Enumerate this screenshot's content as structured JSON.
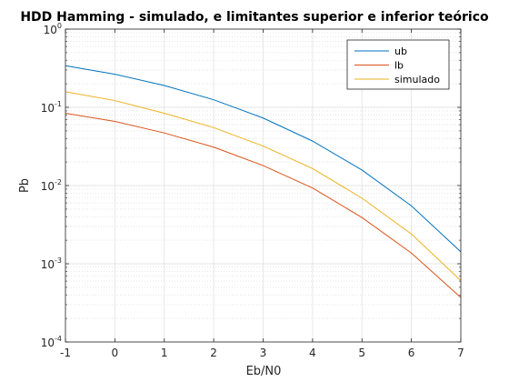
{
  "chart_data": {
    "type": "line",
    "title": "HDD Hamming - simulado, e limitantes superior e inferior teórico",
    "xlabel": "Eb/N0",
    "ylabel": "Pb",
    "xlim": [
      -1,
      7
    ],
    "ylim": [
      0.0001,
      1
    ],
    "yscale": "log",
    "x_ticks": [
      -1,
      0,
      1,
      2,
      3,
      4,
      5,
      6,
      7
    ],
    "y_ticks": [
      {
        "base": "10",
        "exp": "0",
        "value": 1
      },
      {
        "base": "10",
        "exp": "-1",
        "value": 0.1
      },
      {
        "base": "10",
        "exp": "-2",
        "value": 0.01
      },
      {
        "base": "10",
        "exp": "-3",
        "value": 0.001
      },
      {
        "base": "10",
        "exp": "-4",
        "value": 0.0001
      }
    ],
    "grid": true,
    "minor_grid": true,
    "legend_position": "top-right",
    "x": [
      -1,
      0,
      1,
      2,
      3,
      4,
      5,
      6,
      7
    ],
    "series": [
      {
        "name": "ub",
        "color": "#0072BD",
        "values": [
          0.34,
          0.265,
          0.19,
          0.125,
          0.073,
          0.037,
          0.0158,
          0.0055,
          0.00142
        ]
      },
      {
        "name": "lb",
        "color": "#D95319",
        "values": [
          0.084,
          0.066,
          0.047,
          0.031,
          0.018,
          0.0093,
          0.0039,
          0.00137,
          0.00037
        ]
      },
      {
        "name": "simulado",
        "color": "#EDB120",
        "values": [
          0.158,
          0.122,
          0.084,
          0.055,
          0.032,
          0.0165,
          0.0069,
          0.0024,
          0.00061
        ]
      }
    ]
  }
}
